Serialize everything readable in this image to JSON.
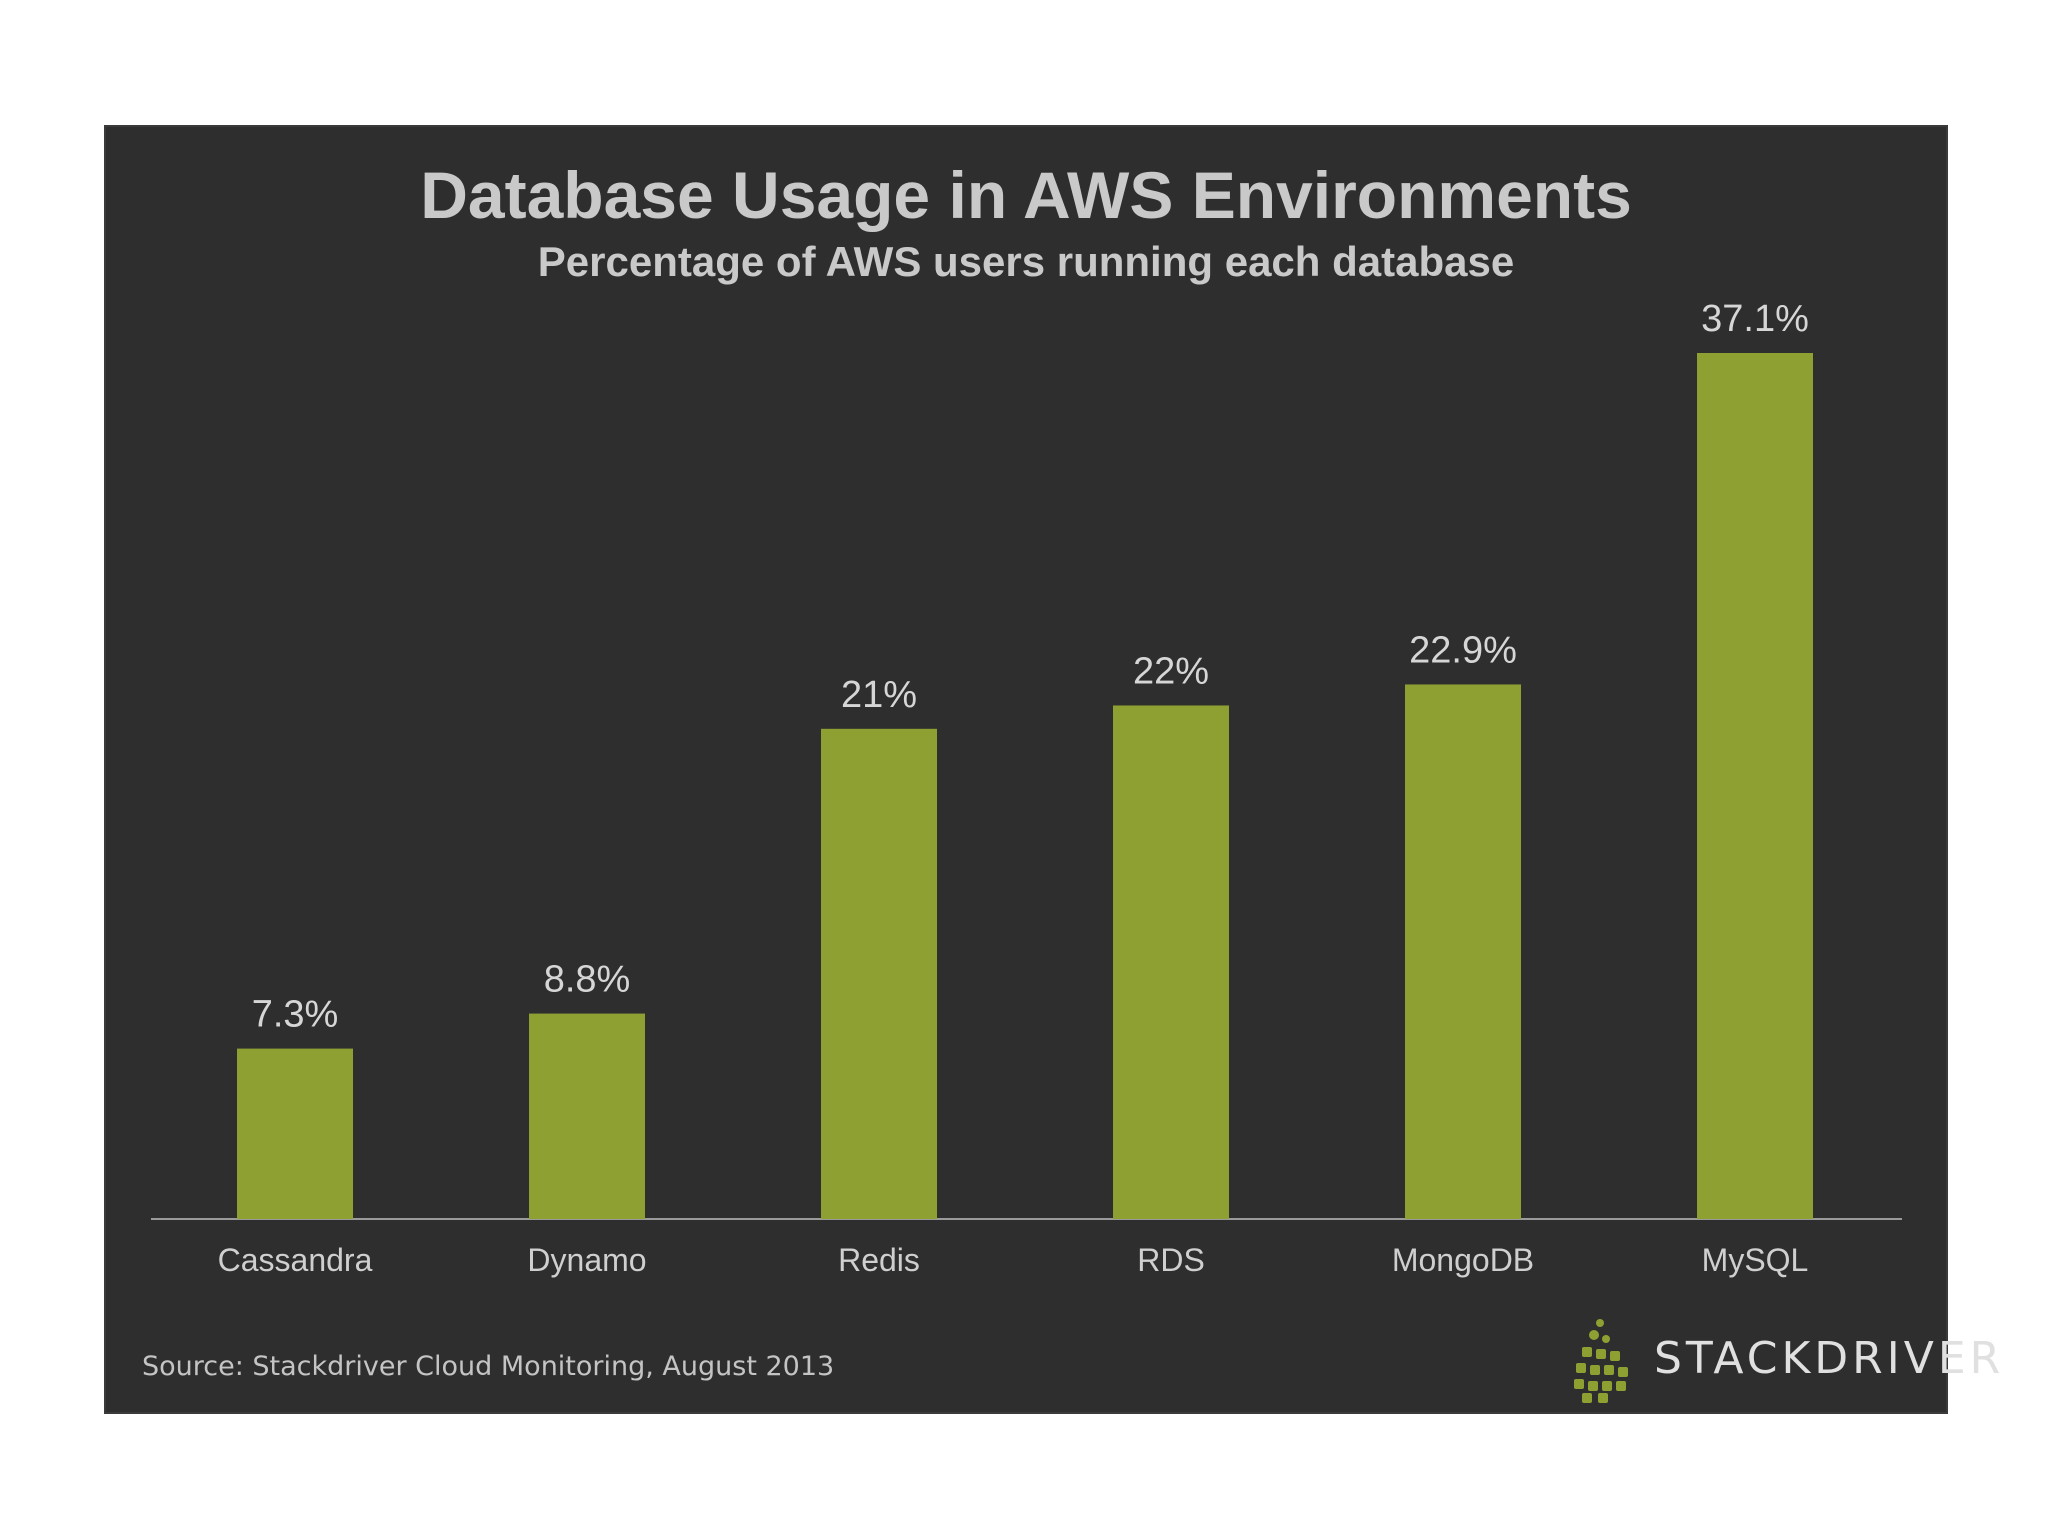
{
  "chart_data": {
    "type": "bar",
    "title": "Database Usage in AWS Environments",
    "subtitle": "Percentage of AWS users running each database",
    "categories": [
      "Cassandra",
      "Dynamo",
      "Redis",
      "RDS",
      "MongoDB",
      "MySQL"
    ],
    "values": [
      7.3,
      8.8,
      21,
      22,
      22.9,
      37.1
    ],
    "value_labels": [
      "7.3%",
      "8.8%",
      "21%",
      "22%",
      "22.9%",
      "37.1%"
    ],
    "ylim": [
      0,
      37.1
    ],
    "grid": false,
    "legend": "none",
    "colors": {
      "bar": "#8fa033",
      "background": "#2e2e2e",
      "axis": "#9a9a9a"
    }
  },
  "source": "Source: Stackdriver Cloud Monitoring, August 2013",
  "logo": {
    "text": "STACKDRIVER",
    "icon": "stackdriver-logo-icon"
  }
}
